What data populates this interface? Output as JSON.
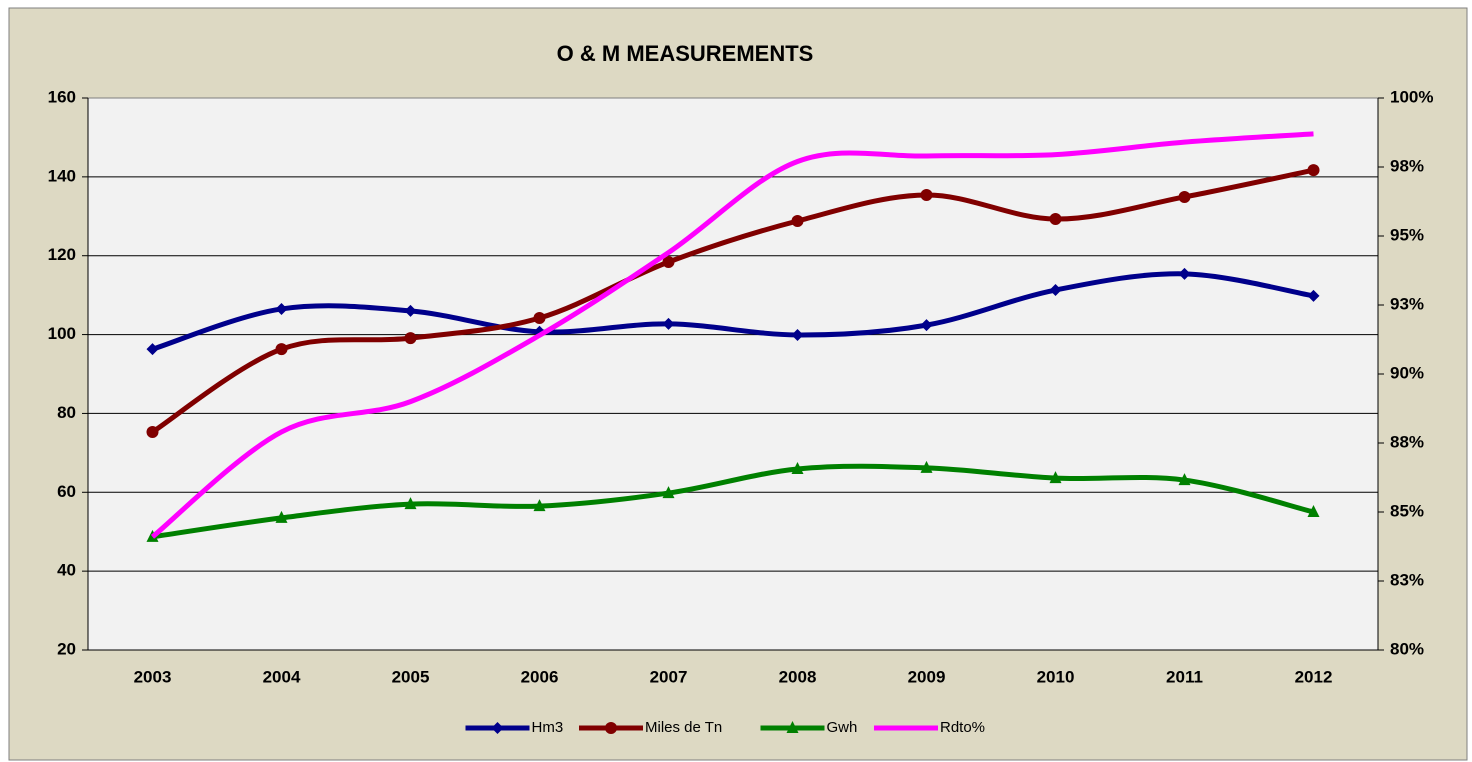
{
  "chart_data": {
    "type": "line",
    "title": "O & M MEASUREMENTS",
    "categories": [
      "2003",
      "2004",
      "2005",
      "2006",
      "2007",
      "2008",
      "2009",
      "2010",
      "2011",
      "2012"
    ],
    "series": [
      {
        "name": "Hm3",
        "color": "#00008b",
        "marker": "diamond",
        "values": [
          96.3,
          106.5,
          106,
          100.7,
          102.7,
          99.9,
          102.4,
          111.3,
          115.4,
          109.8
        ]
      },
      {
        "name": "Miles de Tn",
        "color": "#800000",
        "marker": "circle",
        "values": [
          75.3,
          96.3,
          99.1,
          104.2,
          118.4,
          128.8,
          135.4,
          129.3,
          134.9,
          141.7
        ]
      },
      {
        "name": "Gwh",
        "color": "#008000",
        "marker": "triangle",
        "values": [
          48.7,
          53.5,
          57,
          56.5,
          59.8,
          65.9,
          66.2,
          63.6,
          63.1,
          55
        ]
      },
      {
        "name": "Rdto%",
        "color": "#ff00ff",
        "axis": "y2",
        "values": [
          84.1,
          87.9,
          89,
          91.4,
          94.4,
          97.7,
          97.9,
          97.95,
          98.4,
          98.7
        ]
      }
    ],
    "ylim": [
      20,
      160
    ],
    "yticks": [
      20,
      40,
      60,
      80,
      100,
      120,
      140,
      160
    ],
    "y2lim": [
      80,
      100
    ],
    "y2ticks": [
      {
        "value": 80,
        "label": "80%"
      },
      {
        "value": 82.5,
        "label": "83%"
      },
      {
        "value": 85,
        "label": "85%"
      },
      {
        "value": 87.5,
        "label": "88%"
      },
      {
        "value": 90,
        "label": "90%"
      },
      {
        "value": 92.5,
        "label": "93%"
      },
      {
        "value": 95,
        "label": "95%"
      },
      {
        "value": 97.5,
        "label": "98%"
      },
      {
        "value": 100,
        "label": "100%"
      }
    ],
    "grid": true,
    "legend": "bottom"
  }
}
